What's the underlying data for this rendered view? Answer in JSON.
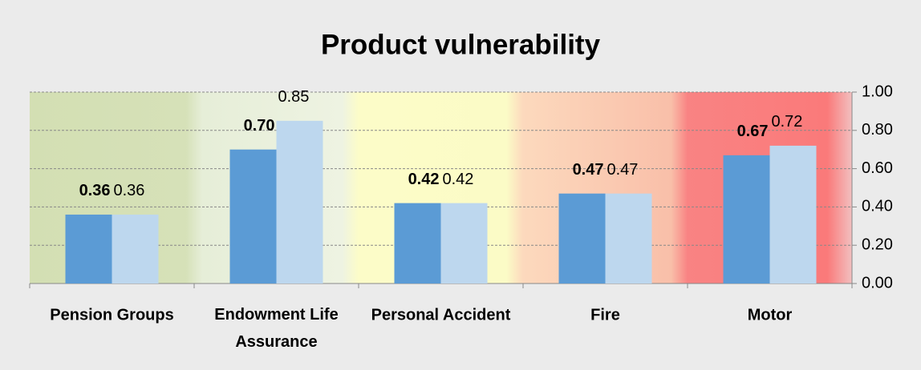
{
  "chart_data": {
    "type": "bar",
    "title": "Product vulnerability",
    "categories": [
      "Pension Groups",
      "Endowment Life Assurance",
      "Personal Accident",
      "Fire",
      "Motor"
    ],
    "series": [
      {
        "color": "#5b9bd5",
        "values": [
          0.36,
          0.7,
          0.42,
          0.47,
          0.67
        ],
        "value_labels": [
          "0.36",
          "0.70",
          "0.42",
          "0.47",
          "0.67"
        ]
      },
      {
        "color": "#bdd7ee",
        "values": [
          0.36,
          0.85,
          0.42,
          0.47,
          0.72
        ],
        "value_labels": [
          "0.36",
          "0.85",
          "0.42",
          "0.47",
          "0.72"
        ]
      }
    ],
    "ylim": [
      0,
      1
    ],
    "yticks": [
      {
        "value": 0,
        "label": "0.00"
      },
      {
        "value": 0.2,
        "label": "0.20"
      },
      {
        "value": 0.4,
        "label": "0.40"
      },
      {
        "value": 0.6,
        "label": "0.60"
      },
      {
        "value": 0.8,
        "label": "0.80"
      },
      {
        "value": 1,
        "label": "1.00"
      }
    ],
    "grid": true
  }
}
